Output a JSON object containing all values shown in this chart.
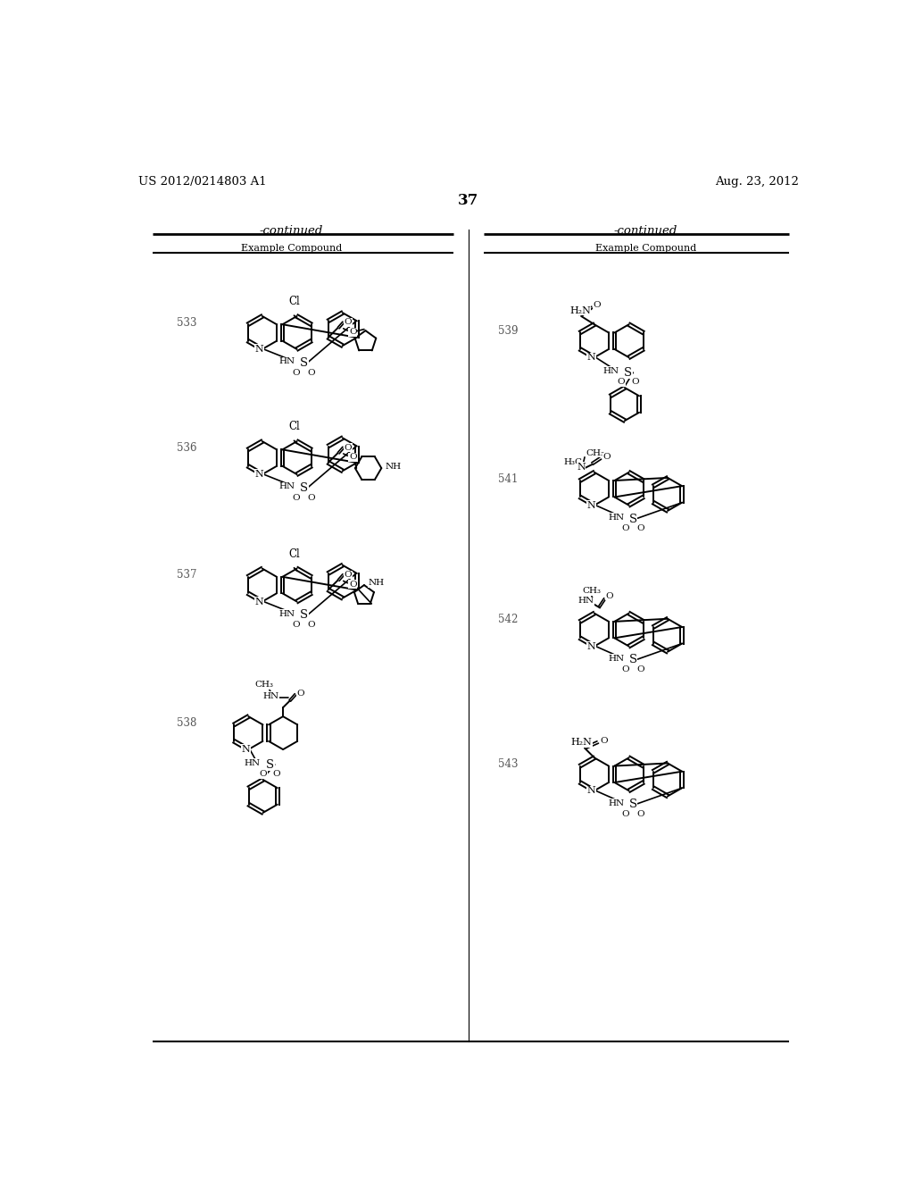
{
  "background_color": "#ffffff",
  "header_left": "US 2012/0214803 A1",
  "header_right": "Aug. 23, 2012",
  "page_number": "37",
  "table_header": "-continued",
  "col_header": "Example Compound"
}
